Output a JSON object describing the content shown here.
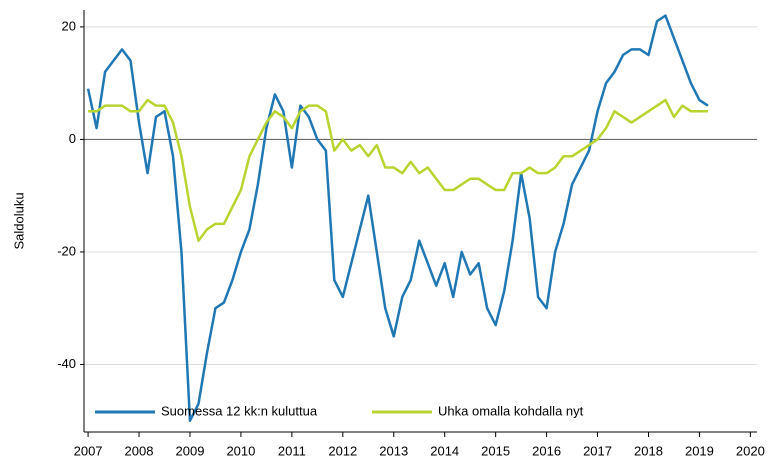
{
  "chart_data": {
    "type": "line",
    "y_label": "Saldoluku",
    "x": [
      2007.0,
      2007.167,
      2007.333,
      2007.5,
      2007.667,
      2007.833,
      2008.0,
      2008.167,
      2008.333,
      2008.5,
      2008.667,
      2008.833,
      2009.0,
      2009.167,
      2009.333,
      2009.5,
      2009.667,
      2009.833,
      2010.0,
      2010.167,
      2010.333,
      2010.5,
      2010.667,
      2010.833,
      2011.0,
      2011.167,
      2011.333,
      2011.5,
      2011.667,
      2011.833,
      2012.0,
      2012.167,
      2012.333,
      2012.5,
      2012.667,
      2012.833,
      2013.0,
      2013.167,
      2013.333,
      2013.5,
      2013.667,
      2013.833,
      2014.0,
      2014.167,
      2014.333,
      2014.5,
      2014.667,
      2014.833,
      2015.0,
      2015.167,
      2015.333,
      2015.5,
      2015.667,
      2015.833,
      2016.0,
      2016.167,
      2016.333,
      2016.5,
      2016.667,
      2016.833,
      2017.0,
      2017.167,
      2017.333,
      2017.5,
      2017.667,
      2017.833,
      2018.0,
      2018.167,
      2018.333,
      2018.5,
      2018.667,
      2018.833,
      2019.0,
      2019.167
    ],
    "series": [
      {
        "name": "Suomessa 12 kk:n kuluttua",
        "color": "#1f77b4",
        "values": [
          9,
          2,
          12,
          14,
          16,
          14,
          3,
          -6,
          4,
          5,
          -3,
          -20,
          -50,
          -47,
          -38,
          -30,
          -29,
          -25,
          -20,
          -16,
          -8,
          2,
          8,
          5,
          -5,
          6,
          4,
          0,
          -2,
          -25,
          -28,
          -22,
          -16,
          -10,
          -20,
          -30,
          -35,
          -28,
          -25,
          -18,
          -22,
          -26,
          -22,
          -28,
          -20,
          -24,
          -22,
          -30,
          -33,
          -27,
          -18,
          -6,
          -14,
          -28,
          -30,
          -20,
          -15,
          -8,
          -5,
          -2,
          5,
          10,
          12,
          15,
          16,
          16,
          15,
          21,
          22,
          18,
          14,
          10,
          7,
          6
        ]
      },
      {
        "name": "Uhka omalla kohdalla nyt",
        "color": "#b8d430",
        "values": [
          5,
          5,
          6,
          6,
          6,
          5,
          5,
          7,
          6,
          6,
          3,
          -3,
          -12,
          -18,
          -16,
          -15,
          -15,
          -12,
          -9,
          -3,
          0,
          3,
          5,
          4,
          2,
          5,
          6,
          6,
          5,
          -2,
          0,
          -2,
          -1,
          -3,
          -1,
          -5,
          -5,
          -6,
          -4,
          -6,
          -5,
          -7,
          -9,
          -9,
          -8,
          -7,
          -7,
          -8,
          -9,
          -9,
          -6,
          -6,
          -5,
          -6,
          -6,
          -5,
          -3,
          -3,
          -2,
          -1,
          0,
          2,
          5,
          4,
          3,
          4,
          5,
          6,
          7,
          4,
          6,
          5,
          5,
          5
        ]
      }
    ],
    "xlim": [
      2006.92,
      2020.13
    ],
    "xticks": [
      2007,
      2008,
      2009,
      2010,
      2011,
      2012,
      2013,
      2014,
      2015,
      2016,
      2017,
      2018,
      2019,
      2020
    ],
    "ylim": [
      -52,
      23
    ],
    "yticks": [
      -40,
      -20,
      0,
      20
    ],
    "grid": true,
    "legend": "bottom-left"
  }
}
